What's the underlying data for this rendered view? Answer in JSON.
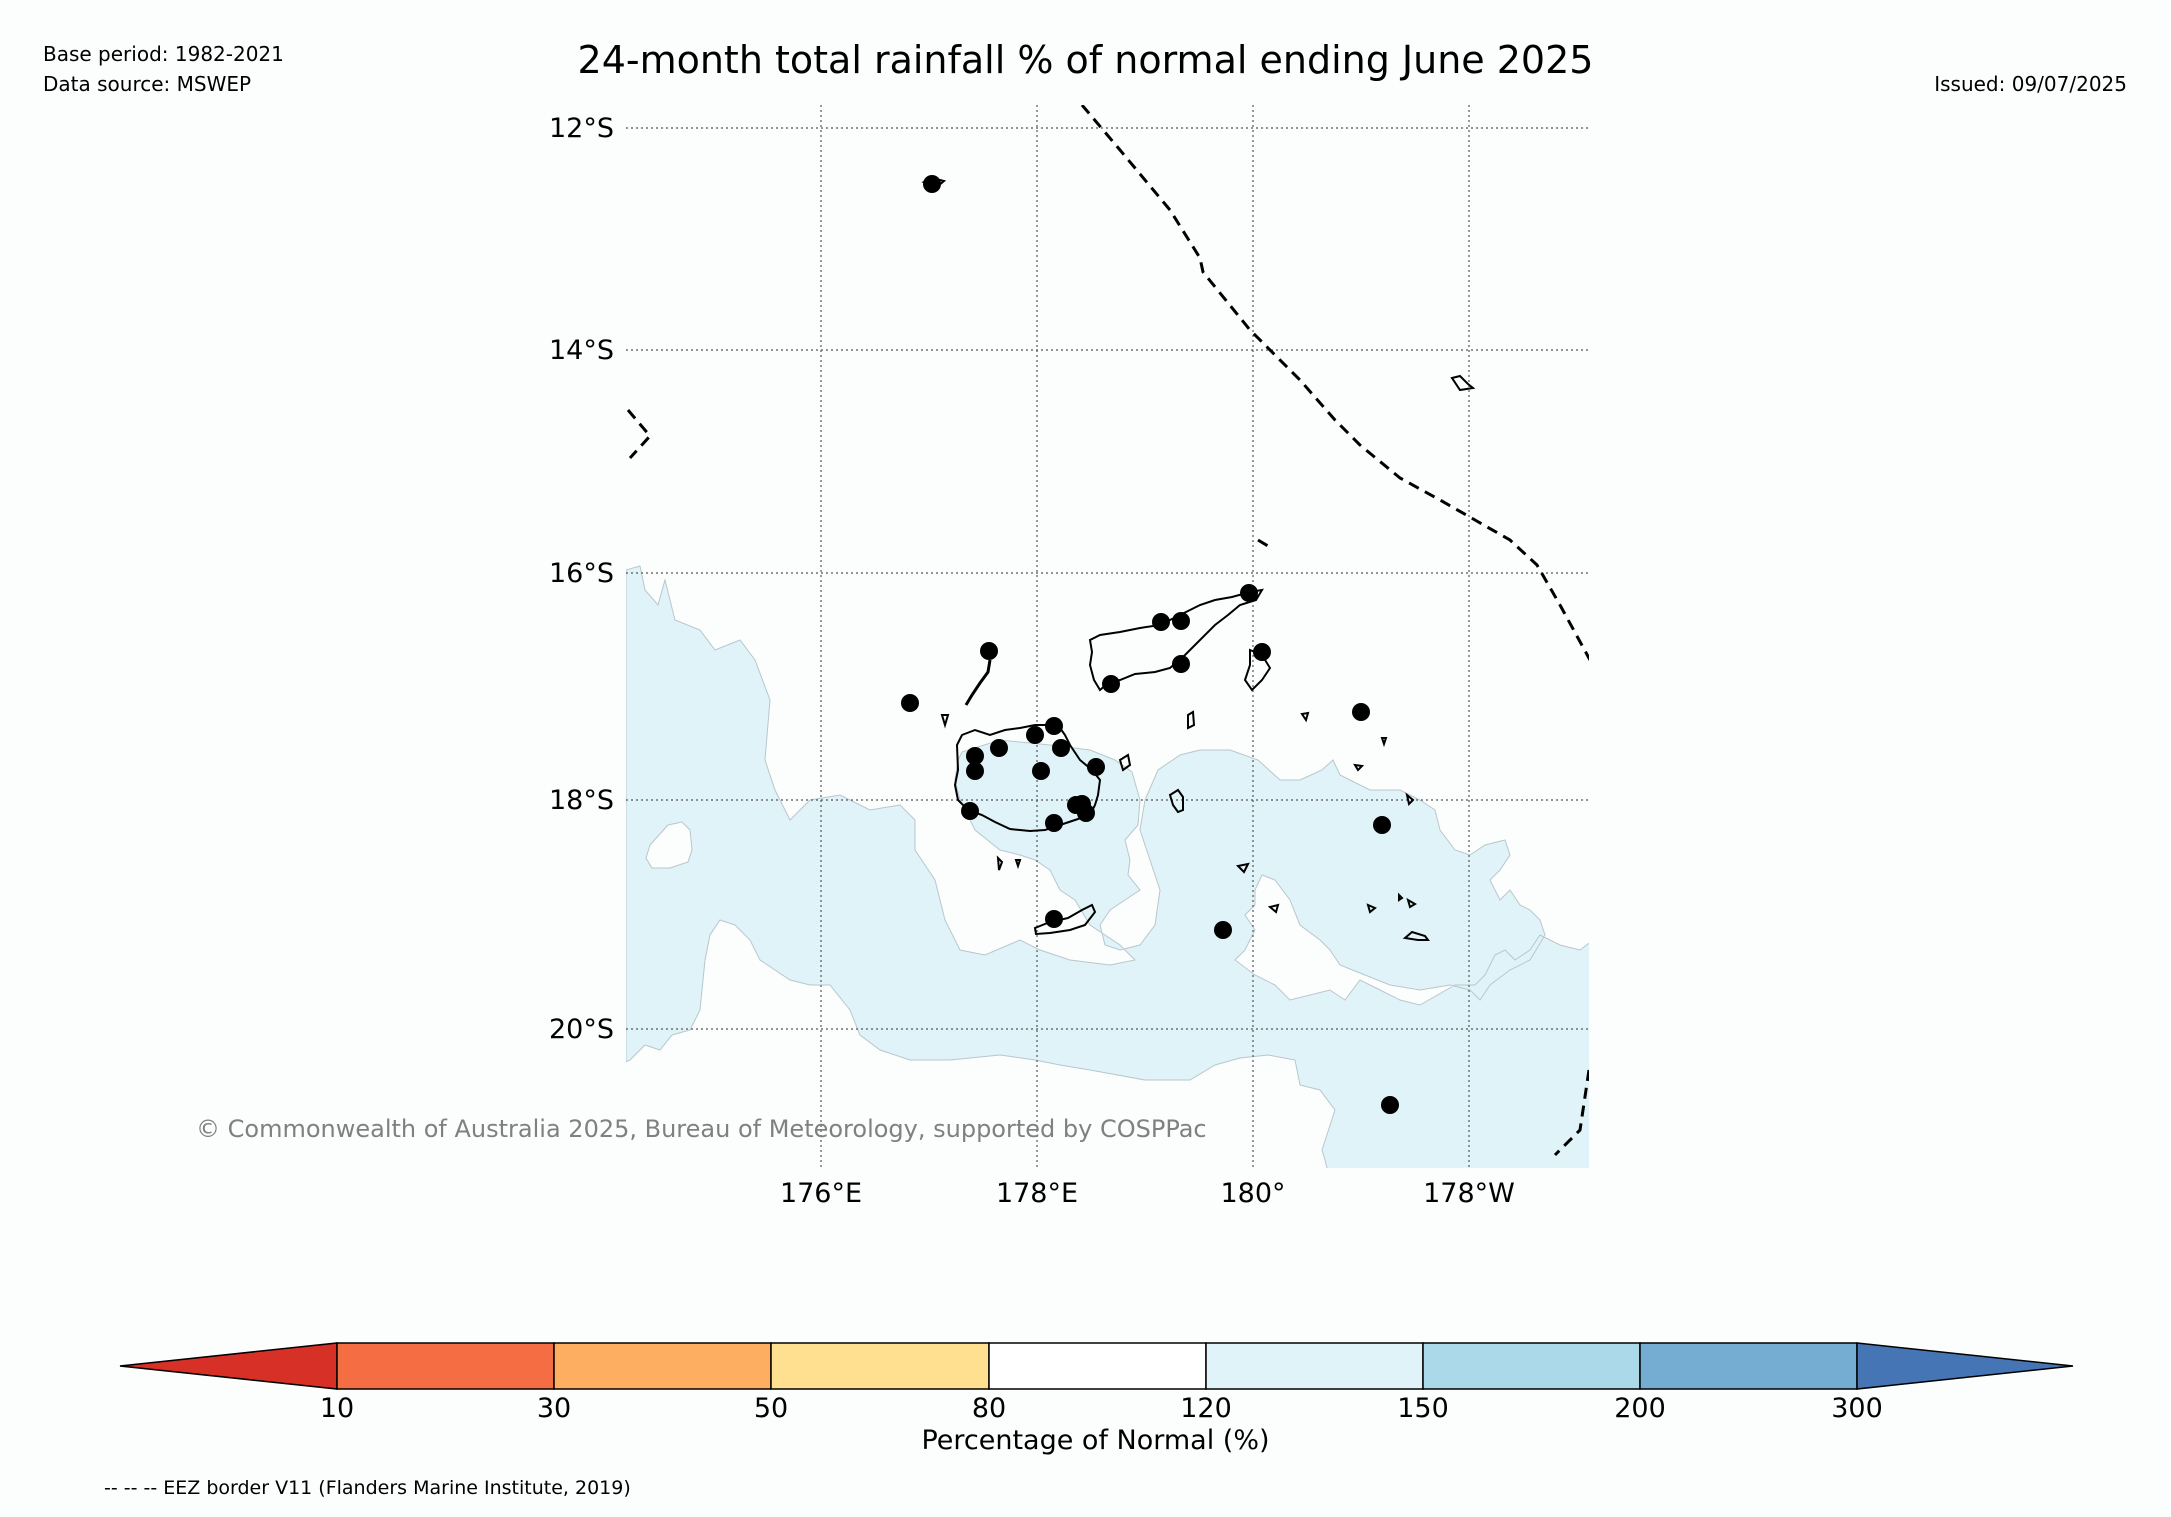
{
  "meta": {
    "base_period": "Base period: 1982-2021",
    "data_source": "Data source: MSWEP",
    "issued": "Issued: 09/07/2025"
  },
  "title": "24-month total rainfall % of normal ending June 2025",
  "map": {
    "lat_labels": [
      "12°S",
      "14°S",
      "16°S",
      "18°S",
      "20°S"
    ],
    "lon_labels": [
      "176°E",
      "178°E",
      "180°",
      "178°W"
    ],
    "lat_range": [
      -21.2,
      -11.8
    ],
    "lon_range": [
      174.2,
      183.1
    ],
    "gridlines": "dotted",
    "shading_color": "#e0f3f8",
    "region_class": "120-150",
    "copyright": "© Commonwealth of Australia 2025, Bureau of Meteorology, supported by COSPPac"
  },
  "colorbar": {
    "label": "Percentage of Normal (%)",
    "ticks": [
      "10",
      "30",
      "50",
      "80",
      "120",
      "150",
      "200",
      "300"
    ],
    "colors": [
      "#d73027",
      "#f46d43",
      "#fdae61",
      "#fee090",
      "#ffffff",
      "#e0f3f8",
      "#abd9e9",
      "#74add1",
      "#4575b4"
    ],
    "extend": "both"
  },
  "footnote": "-- -- -- EEZ border V11 (Flanders Marine Institute, 2019)"
}
